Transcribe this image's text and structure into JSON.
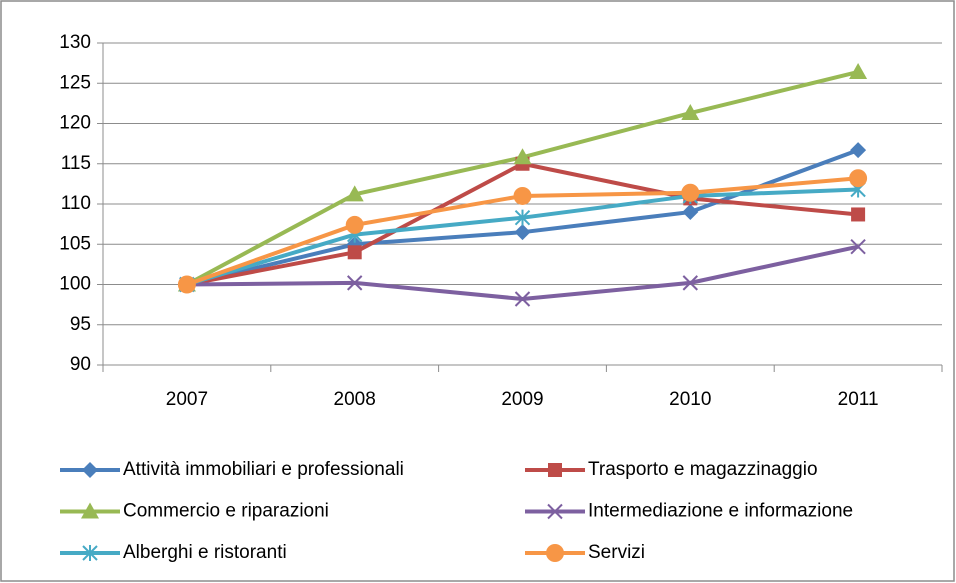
{
  "chart_data": {
    "type": "line",
    "categories": [
      "2007",
      "2008",
      "2009",
      "2010",
      "2011"
    ],
    "series": [
      {
        "name": "Attività immobiliari e professionali",
        "color": "#4a7ebb",
        "marker": "diamond",
        "values": [
          100,
          105,
          106.5,
          109,
          116.7
        ]
      },
      {
        "name": "Trasporto e magazzinaggio",
        "color": "#be4b48",
        "marker": "square",
        "values": [
          100,
          104,
          115,
          110.7,
          108.7
        ]
      },
      {
        "name": "Commercio e riparazioni",
        "color": "#98b954",
        "marker": "triangle",
        "values": [
          100,
          111.2,
          115.8,
          121.3,
          126.4
        ]
      },
      {
        "name": "Intermediazione e informazione",
        "color": "#7d60a0",
        "marker": "x",
        "values": [
          100,
          100.2,
          98.2,
          100.2,
          104.7
        ]
      },
      {
        "name": "Alberghi e ristoranti",
        "color": "#46aac5",
        "marker": "star",
        "values": [
          100,
          106.2,
          108.3,
          111,
          111.8
        ]
      },
      {
        "name": "Servizi",
        "color": "#f79646",
        "marker": "circle",
        "values": [
          100,
          107.4,
          111,
          111.4,
          113.2
        ]
      }
    ],
    "ylim": [
      90,
      130
    ],
    "yticks": [
      90,
      95,
      100,
      105,
      110,
      115,
      120,
      125,
      130
    ],
    "grid": true,
    "legend": "bottom"
  }
}
